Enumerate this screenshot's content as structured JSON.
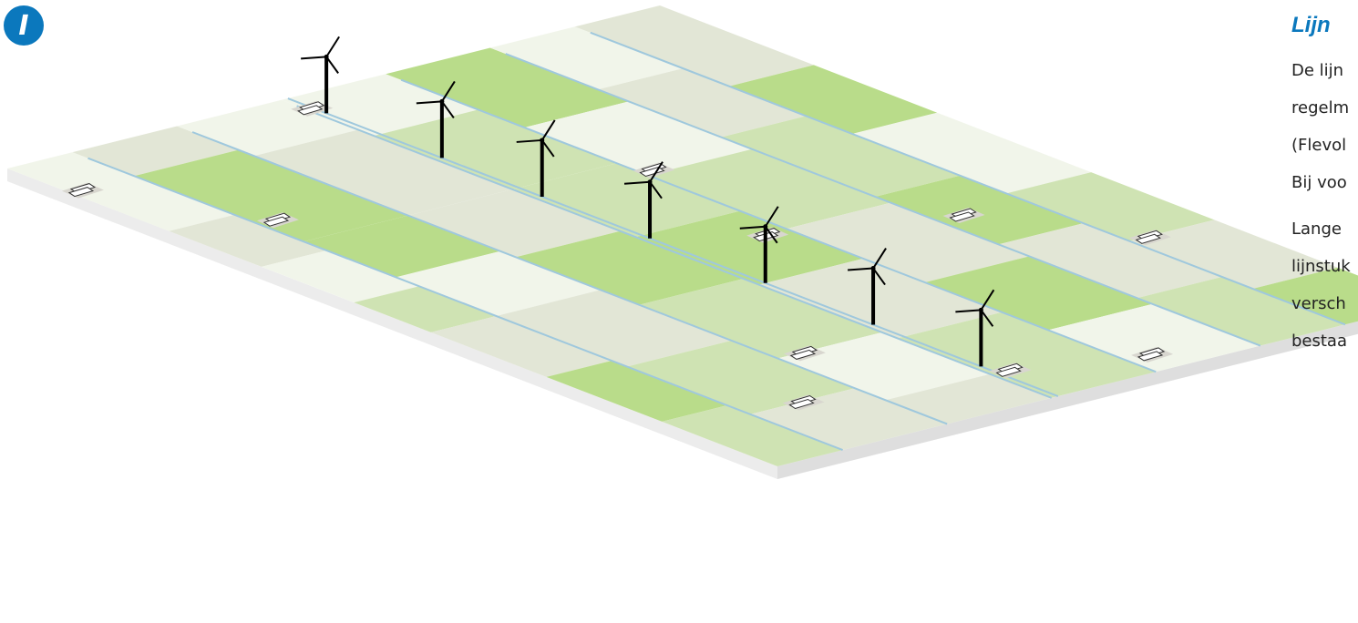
{
  "badge": {
    "letter": "I",
    "color": "#0b78bd"
  },
  "sidebar": {
    "title": "Lijn",
    "paragraph1_lines": [
      "De lijn",
      "regelm",
      "(Flevol",
      "Bij voo"
    ],
    "paragraph2_lines": [
      "Lange",
      "lijnstuk",
      "versch",
      "bestaa"
    ]
  },
  "colors": {
    "accent": "#0b78bd",
    "ditch": "#9fc8dd",
    "field_green": "#b9dc8a",
    "field_mid": "#cfe3b3",
    "field_pale": "#e2e6d6",
    "field_white": "#f1f5ea",
    "platform_edge": "#ececec",
    "turbine": "#000000"
  },
  "icons": [
    "wind-turbine-icon",
    "farm-building-icon"
  ]
}
